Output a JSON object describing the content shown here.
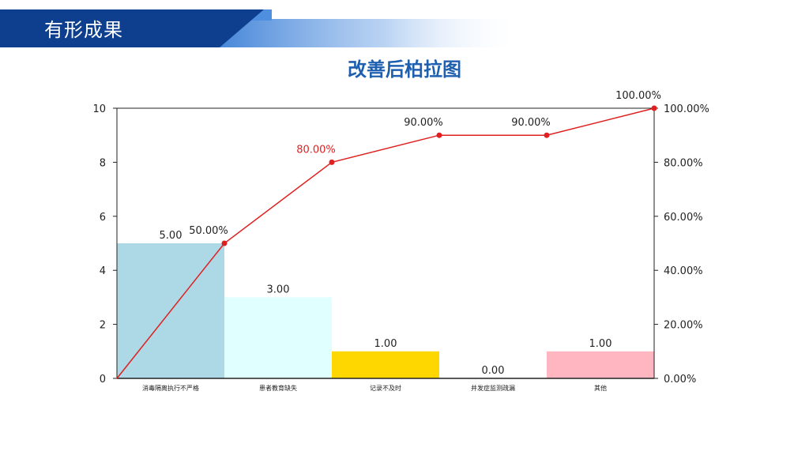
{
  "header": {
    "title": "有形成果",
    "band_color": "#0e3f8f",
    "accent_color": "#3b7fd6"
  },
  "chart_data": {
    "type": "bar",
    "title": "改善后柏拉图",
    "categories": [
      "消毒隔离执行不严格",
      "患者教育缺失",
      "记录不及时",
      "并发症监测疏漏",
      "其他"
    ],
    "values": [
      5,
      3,
      1,
      0,
      1
    ],
    "value_labels": [
      "5.00",
      "3.00",
      "1.00",
      "0.00",
      "1.00"
    ],
    "bar_colors": [
      "#add8e6",
      "#e0ffff",
      "#ffd700",
      "#ffffff",
      "#ffb6c1"
    ],
    "ylim": [
      0,
      10
    ],
    "yticks": [
      "0",
      "2",
      "4",
      "6",
      "8",
      "10"
    ],
    "y2lim": [
      0,
      100
    ],
    "y2ticks": [
      "0.00%",
      "20.00%",
      "40.00%",
      "60.00%",
      "80.00%",
      "100.00%"
    ],
    "cumulative": {
      "x_positions": [
        0,
        1,
        2,
        3,
        4,
        5
      ],
      "values": [
        0,
        50,
        80,
        90,
        90,
        100
      ],
      "labels": [
        "",
        "50.00%",
        "80.00%",
        "90.00%",
        "90.00%",
        "100.00%"
      ],
      "line_color": "#e02020",
      "highlight_label_color": "#e02020"
    },
    "grid": false,
    "legend": "none"
  }
}
